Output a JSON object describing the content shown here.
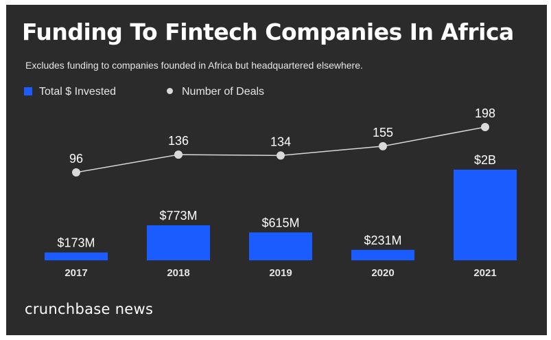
{
  "title": "Funding To Fintech Companies In Africa",
  "subtitle": "Excludes funding to companies founded in Africa but headquartered elsewhere.",
  "brand": "crunchbase news",
  "colors": {
    "background": "#2b2b2b",
    "bar": "#1a5cff",
    "line": "#d9d9d9",
    "text": "#ffffff"
  },
  "legend": {
    "invested_label": "Total $ Invested",
    "deals_label": "Number of Deals"
  },
  "chart_data": {
    "type": "bar",
    "title": "Funding To Fintech Companies In Africa",
    "categories": [
      "2017",
      "2018",
      "2019",
      "2020",
      "2021"
    ],
    "series": [
      {
        "name": "Total $ Invested",
        "type": "bar",
        "values": [
          173,
          773,
          615,
          231,
          2000
        ],
        "unit": "$M",
        "labels": [
          "$173M",
          "$773M",
          "$615M",
          "$231M",
          "$2B"
        ]
      },
      {
        "name": "Number of Deals",
        "type": "line",
        "values": [
          96,
          136,
          134,
          155,
          198
        ],
        "labels": [
          "96",
          "136",
          "134",
          "155",
          "198"
        ]
      }
    ],
    "legend": "top-left",
    "grid": false
  }
}
